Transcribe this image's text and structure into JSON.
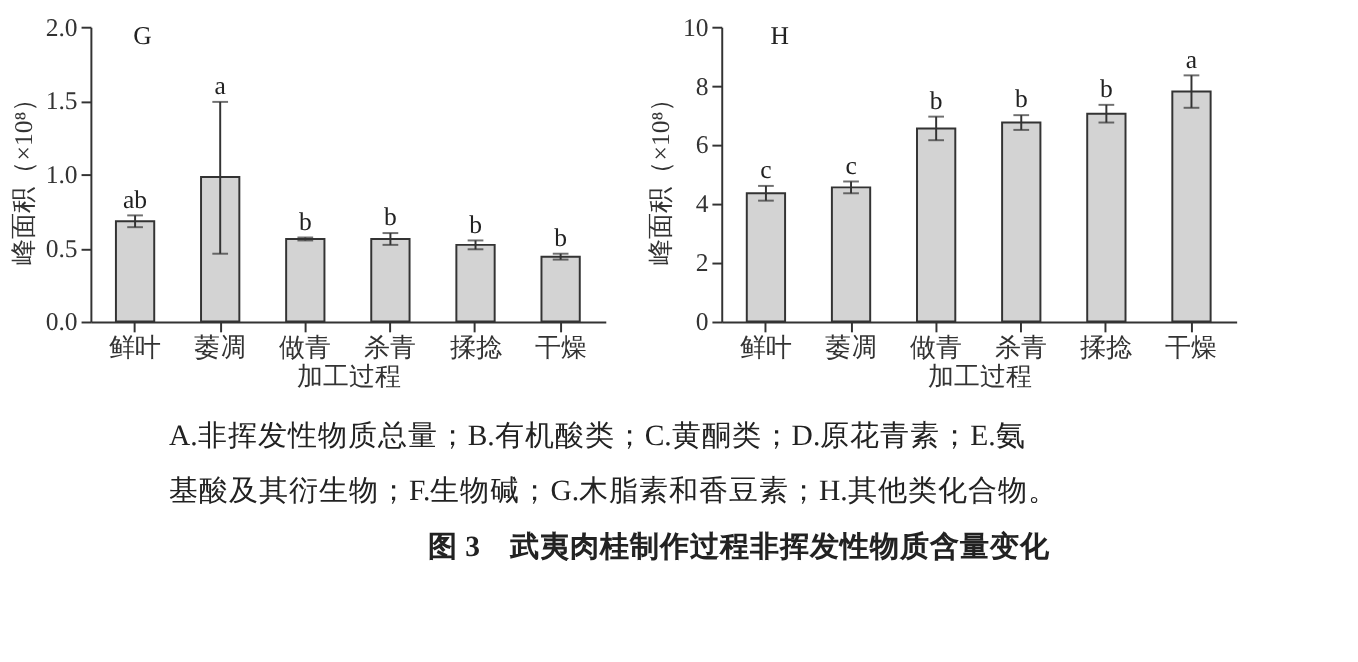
{
  "chart_data": [
    {
      "type": "bar",
      "title": "G",
      "categories": [
        "鲜叶",
        "萎凋",
        "做青",
        "杀青",
        "揉捻",
        "干燥"
      ],
      "values": [
        0.68,
        0.98,
        0.56,
        0.56,
        0.52,
        0.44
      ],
      "errors": [
        0.04,
        [
          0.46,
          1.49
        ],
        0.01,
        0.04,
        0.03,
        0.02
      ],
      "value_labels": [
        "ab",
        "a",
        "b",
        "b",
        "b",
        "b"
      ],
      "color": "#d3d3d3",
      "xlabel": "加工过程",
      "ylabel": "峰面积（×10⁸）",
      "ylim": [
        0,
        2
      ],
      "yticks": [
        {
          "value": 0,
          "label": "0.0"
        },
        0.5,
        {
          "value": 1,
          "label": "1.0"
        },
        1.5,
        {
          "value": 2,
          "label": "2.0"
        }
      ],
      "annotations": [
        "A.非挥发性物质总量；B.有机酸类；C.黄酮类；D.原花青素；E.氨基酸及其衍生物；F.生物碱；G.木脂素和香豆素；H.其他类化合物。",
        "图 3　武夷肉桂制作过程非挥发性物质含量变化"
      ]
    },
    {
      "type": "bar",
      "title": "H",
      "categories": [
        "鲜叶",
        "萎凋",
        "做青",
        "杀青",
        "揉捻",
        "干燥"
      ],
      "values": [
        4.35,
        4.55,
        6.55,
        6.75,
        7.05,
        7.8
      ],
      "errors": [
        0.25,
        0.2,
        0.4,
        0.25,
        0.3,
        0.55
      ],
      "value_labels": [
        "c",
        "c",
        "b",
        "b",
        "b",
        "a"
      ],
      "color": "#d3d3d3",
      "xlabel": "加工过程",
      "ylabel": "峰面积（×10⁸）",
      "ylim": [
        0,
        10
      ],
      "yticks": [
        0,
        2,
        4,
        6,
        8,
        10
      ]
    }
  ]
}
